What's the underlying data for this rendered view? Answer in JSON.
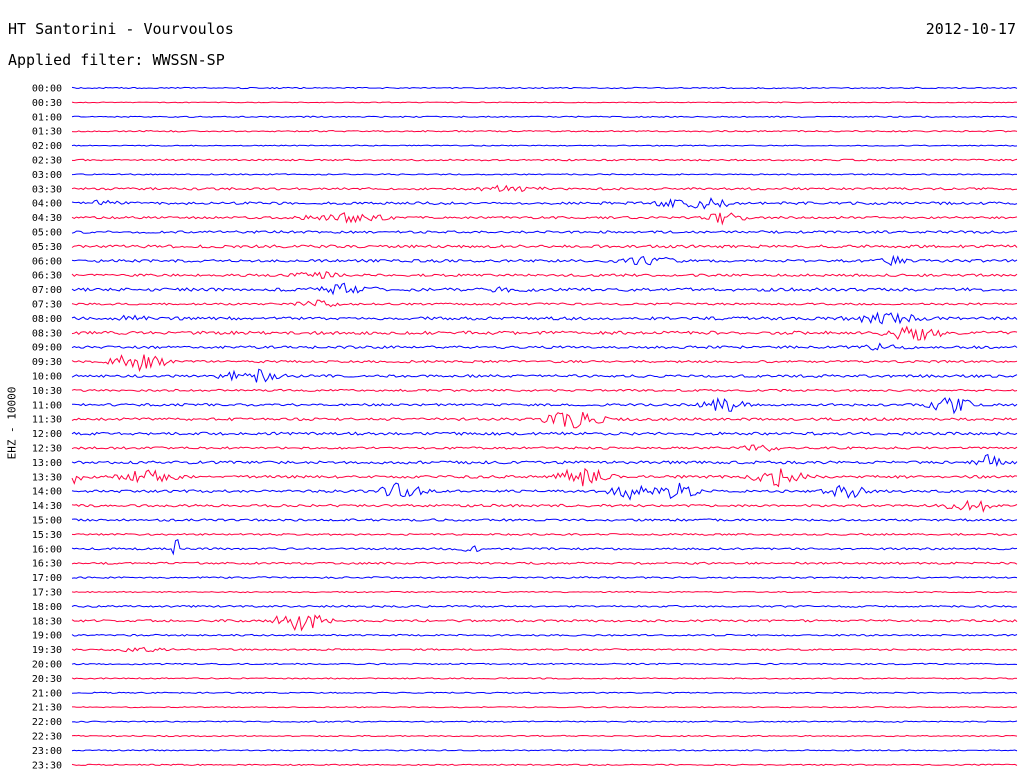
{
  "header": {
    "station": "HT Santorini - Vourvoulos",
    "date": "2012-10-17",
    "filter": "Applied filter: WWSSN-SP"
  },
  "chart_data": {
    "type": "line",
    "subtype": "helicorder",
    "title": "HT Santorini - Vourvoulos",
    "subtitle": "Applied filter: WWSSN-SP",
    "date": "2012-10-17",
    "ylabel": "EHZ - 10000",
    "xlabel": "",
    "grid": false,
    "legend": "none",
    "colors": [
      "#0000ff",
      "#ff0040"
    ],
    "rows": [
      "00:00",
      "00:30",
      "01:00",
      "01:30",
      "02:00",
      "02:30",
      "03:00",
      "03:30",
      "04:00",
      "04:30",
      "05:00",
      "05:30",
      "06:00",
      "06:30",
      "07:00",
      "07:30",
      "08:00",
      "08:30",
      "09:00",
      "09:30",
      "10:00",
      "10:30",
      "11:00",
      "11:30",
      "12:00",
      "12:30",
      "13:00",
      "13:30",
      "14:00",
      "14:30",
      "15:00",
      "15:30",
      "16:00",
      "16:30",
      "17:00",
      "17:30",
      "18:00",
      "18:30",
      "19:00",
      "19:30",
      "20:00",
      "20:30",
      "21:00",
      "21:30",
      "22:00",
      "22:30",
      "23:00",
      "23:30"
    ],
    "noise": [
      0.6,
      0.4,
      0.6,
      0.7,
      0.5,
      0.8,
      0.6,
      1.1,
      1.3,
      1.1,
      1.2,
      1.4,
      1.3,
      1.2,
      1.6,
      1.0,
      1.5,
      1.6,
      1.3,
      1.1,
      1.3,
      1.0,
      1.2,
      1.3,
      1.4,
      1.1,
      1.4,
      1.3,
      1.3,
      1.2,
      1.1,
      0.9,
      1.0,
      1.0,
      0.8,
      0.6,
      0.9,
      1.1,
      0.8,
      0.8,
      0.7,
      0.6,
      0.6,
      0.5,
      0.6,
      0.6,
      0.6,
      0.6
    ],
    "events": [
      {
        "row": 7,
        "x": 0.46,
        "amp": 3,
        "width": 0.05
      },
      {
        "row": 8,
        "x": 0.66,
        "amp": 6,
        "width": 0.05
      },
      {
        "row": 8,
        "x": 0.03,
        "amp": 2,
        "width": 0.03
      },
      {
        "row": 9,
        "x": 0.29,
        "amp": 4,
        "width": 0.06
      },
      {
        "row": 9,
        "x": 0.69,
        "amp": 6,
        "width": 0.03
      },
      {
        "row": 12,
        "x": 0.61,
        "amp": 4,
        "width": 0.04
      },
      {
        "row": 12,
        "x": 0.87,
        "amp": 4,
        "width": 0.02
      },
      {
        "row": 13,
        "x": 0.26,
        "amp": 3,
        "width": 0.04
      },
      {
        "row": 14,
        "x": 0.29,
        "amp": 5,
        "width": 0.04
      },
      {
        "row": 14,
        "x": 0.46,
        "amp": 2,
        "width": 0.03
      },
      {
        "row": 15,
        "x": 0.26,
        "amp": 3,
        "width": 0.03
      },
      {
        "row": 16,
        "x": 0.86,
        "amp": 6,
        "width": 0.05
      },
      {
        "row": 16,
        "x": 0.06,
        "amp": 2,
        "width": 0.03
      },
      {
        "row": 17,
        "x": 0.89,
        "amp": 8,
        "width": 0.04
      },
      {
        "row": 18,
        "x": 0.86,
        "amp": 3,
        "width": 0.03
      },
      {
        "row": 19,
        "x": 0.07,
        "amp": 9,
        "width": 0.04
      },
      {
        "row": 20,
        "x": 0.19,
        "amp": 9,
        "width": 0.04
      },
      {
        "row": 22,
        "x": 0.69,
        "amp": 8,
        "width": 0.03
      },
      {
        "row": 22,
        "x": 0.93,
        "amp": 9,
        "width": 0.03
      },
      {
        "row": 23,
        "x": 0.53,
        "amp": 10,
        "width": 0.04
      },
      {
        "row": 25,
        "x": 0.73,
        "amp": 3,
        "width": 0.03
      },
      {
        "row": 26,
        "x": 0.97,
        "amp": 7,
        "width": 0.02
      },
      {
        "row": 27,
        "x": 0.0,
        "amp": 8,
        "width": 0.02
      },
      {
        "row": 27,
        "x": 0.08,
        "amp": 7,
        "width": 0.04
      },
      {
        "row": 27,
        "x": 0.54,
        "amp": 9,
        "width": 0.04
      },
      {
        "row": 27,
        "x": 0.75,
        "amp": 9,
        "width": 0.04
      },
      {
        "row": 28,
        "x": 0.35,
        "amp": 10,
        "width": 0.03
      },
      {
        "row": 28,
        "x": 0.59,
        "amp": 7,
        "width": 0.03
      },
      {
        "row": 28,
        "x": 0.64,
        "amp": 8,
        "width": 0.03
      },
      {
        "row": 28,
        "x": 0.82,
        "amp": 7,
        "width": 0.03
      },
      {
        "row": 29,
        "x": 0.95,
        "amp": 9,
        "width": 0.03
      },
      {
        "row": 32,
        "x": 0.11,
        "amp": 20,
        "width": 0.004
      },
      {
        "row": 32,
        "x": 0.42,
        "amp": 3,
        "width": 0.02
      },
      {
        "row": 37,
        "x": 0.24,
        "amp": 10,
        "width": 0.04
      },
      {
        "row": 39,
        "x": 0.07,
        "amp": 2,
        "width": 0.04
      }
    ]
  }
}
